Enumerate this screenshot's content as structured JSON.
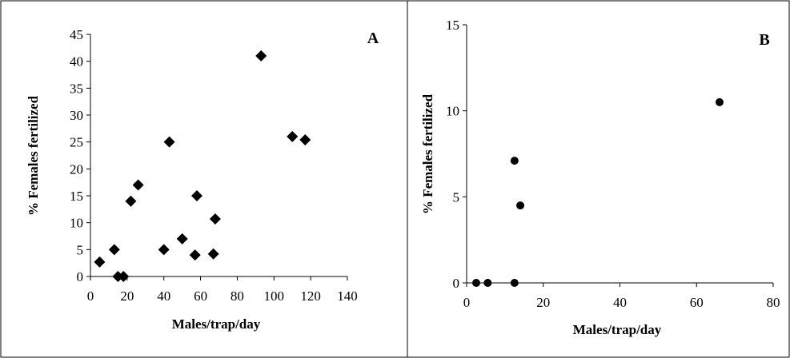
{
  "chart_data": [
    {
      "type": "scatter",
      "panel_label": "A",
      "xlabel": "Males/trap/day",
      "ylabel": "% Females fertilized",
      "xlim": [
        0,
        140
      ],
      "ylim": [
        0,
        45
      ],
      "xticks": [
        0,
        20,
        40,
        60,
        80,
        100,
        120,
        140
      ],
      "yticks": [
        0,
        5,
        10,
        15,
        20,
        25,
        30,
        35,
        40,
        45
      ],
      "marker": "diamond",
      "marker_color": "#000000",
      "grid": false,
      "points": [
        {
          "x": 5,
          "y": 2.7
        },
        {
          "x": 13,
          "y": 5
        },
        {
          "x": 15,
          "y": 0
        },
        {
          "x": 18,
          "y": 0
        },
        {
          "x": 22,
          "y": 14
        },
        {
          "x": 26,
          "y": 17
        },
        {
          "x": 40,
          "y": 5
        },
        {
          "x": 43,
          "y": 25
        },
        {
          "x": 50,
          "y": 7
        },
        {
          "x": 57,
          "y": 4
        },
        {
          "x": 58,
          "y": 15
        },
        {
          "x": 67,
          "y": 4.2
        },
        {
          "x": 68,
          "y": 10.7
        },
        {
          "x": 93,
          "y": 41
        },
        {
          "x": 110,
          "y": 26
        },
        {
          "x": 117,
          "y": 25.4
        }
      ]
    },
    {
      "type": "scatter",
      "panel_label": "B",
      "xlabel": "Males/trap/day",
      "ylabel": "% Females fertilized",
      "xlim": [
        0,
        80
      ],
      "ylim": [
        0,
        15
      ],
      "xticks": [
        0,
        20,
        40,
        60,
        80
      ],
      "yticks": [
        0,
        5,
        10,
        15
      ],
      "marker": "circle",
      "marker_color": "#000000",
      "grid": false,
      "points": [
        {
          "x": 2.5,
          "y": 0
        },
        {
          "x": 5.5,
          "y": 0
        },
        {
          "x": 12.5,
          "y": 0
        },
        {
          "x": 12.5,
          "y": 7.1
        },
        {
          "x": 14,
          "y": 4.5
        },
        {
          "x": 66,
          "y": 10.5
        }
      ]
    }
  ]
}
